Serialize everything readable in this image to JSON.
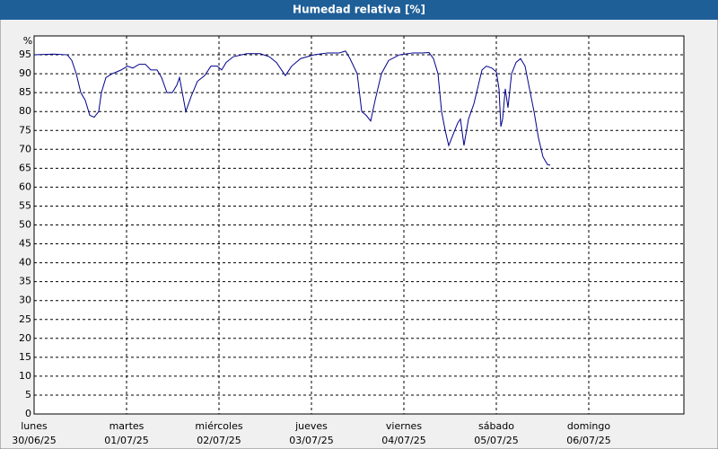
{
  "chart_data": {
    "type": "line",
    "title": "Humedad relativa [%]",
    "y_label": "%",
    "x": [
      0,
      0.214,
      0.359,
      0.408,
      0.456,
      0.505,
      0.553,
      0.602,
      0.65,
      0.699,
      0.728,
      0.777,
      0.845,
      0.942,
      1.01,
      1.068,
      1.136,
      1.204,
      1.262,
      1.33,
      1.379,
      1.437,
      1.495,
      1.544,
      1.573,
      1.641,
      1.699,
      1.767,
      1.845,
      1.913,
      1.981,
      2.029,
      2.078,
      2.155,
      2.301,
      2.447,
      2.544,
      2.621,
      2.718,
      2.786,
      2.883,
      3.029,
      3.175,
      3.301,
      3.369,
      3.417,
      3.495,
      3.544,
      3.592,
      3.641,
      3.689,
      3.757,
      3.835,
      3.951,
      4.097,
      4.194,
      4.272,
      4.32,
      4.369,
      4.408,
      4.447,
      4.485,
      4.534,
      4.583,
      4.612,
      4.65,
      4.699,
      4.757,
      4.796,
      4.845,
      4.893,
      4.951,
      5.0,
      5.029,
      5.049,
      5.068,
      5.097,
      5.126,
      5.165,
      5.214,
      5.262,
      5.311,
      5.359,
      5.408,
      5.456,
      5.505,
      5.553,
      5.583
    ],
    "series": [
      {
        "name": "Humedad relativa",
        "color": "#00008b",
        "values": [
          95,
          95.2,
          95,
          93.5,
          90,
          85,
          83,
          79,
          78.5,
          80,
          85,
          89,
          90,
          91,
          92,
          91.5,
          92.5,
          92.5,
          91,
          91,
          89,
          85,
          85,
          87,
          89,
          80,
          84,
          88,
          89.5,
          92,
          92,
          91,
          93,
          94.5,
          95.3,
          95.3,
          94.5,
          93,
          89.5,
          92,
          94,
          95,
          95.5,
          95.5,
          96,
          94,
          90,
          80,
          79,
          77.5,
          83,
          90,
          93.5,
          95,
          95.5,
          95.5,
          95.6,
          94,
          90,
          80,
          75,
          71,
          74,
          77,
          78,
          71,
          78,
          82,
          86,
          91,
          92,
          91.5,
          90.5,
          86,
          76,
          78,
          86,
          81,
          90,
          93,
          94,
          92,
          86,
          80,
          73,
          68,
          66,
          65.8
        ]
      }
    ],
    "xlim": [
      0,
      7
    ],
    "ylim": [
      0,
      100
    ],
    "xticks": [
      {
        "value": 0,
        "label": "lunes"
      },
      {
        "value": 1,
        "label": "martes"
      },
      {
        "value": 2,
        "label": "miércoles"
      },
      {
        "value": 3,
        "label": "jueves"
      },
      {
        "value": 4,
        "label": "viernes"
      },
      {
        "value": 5,
        "label": "sábado"
      },
      {
        "value": 6,
        "label": "domingo"
      }
    ],
    "xtick_dates": [
      "30/06/25",
      "01/07/25",
      "02/07/25",
      "03/07/25",
      "04/07/25",
      "05/07/25",
      "06/07/25"
    ],
    "yticks": [
      0,
      5,
      10,
      15,
      20,
      25,
      30,
      35,
      40,
      45,
      50,
      55,
      60,
      65,
      70,
      75,
      80,
      85,
      90,
      95
    ],
    "grid": true
  }
}
